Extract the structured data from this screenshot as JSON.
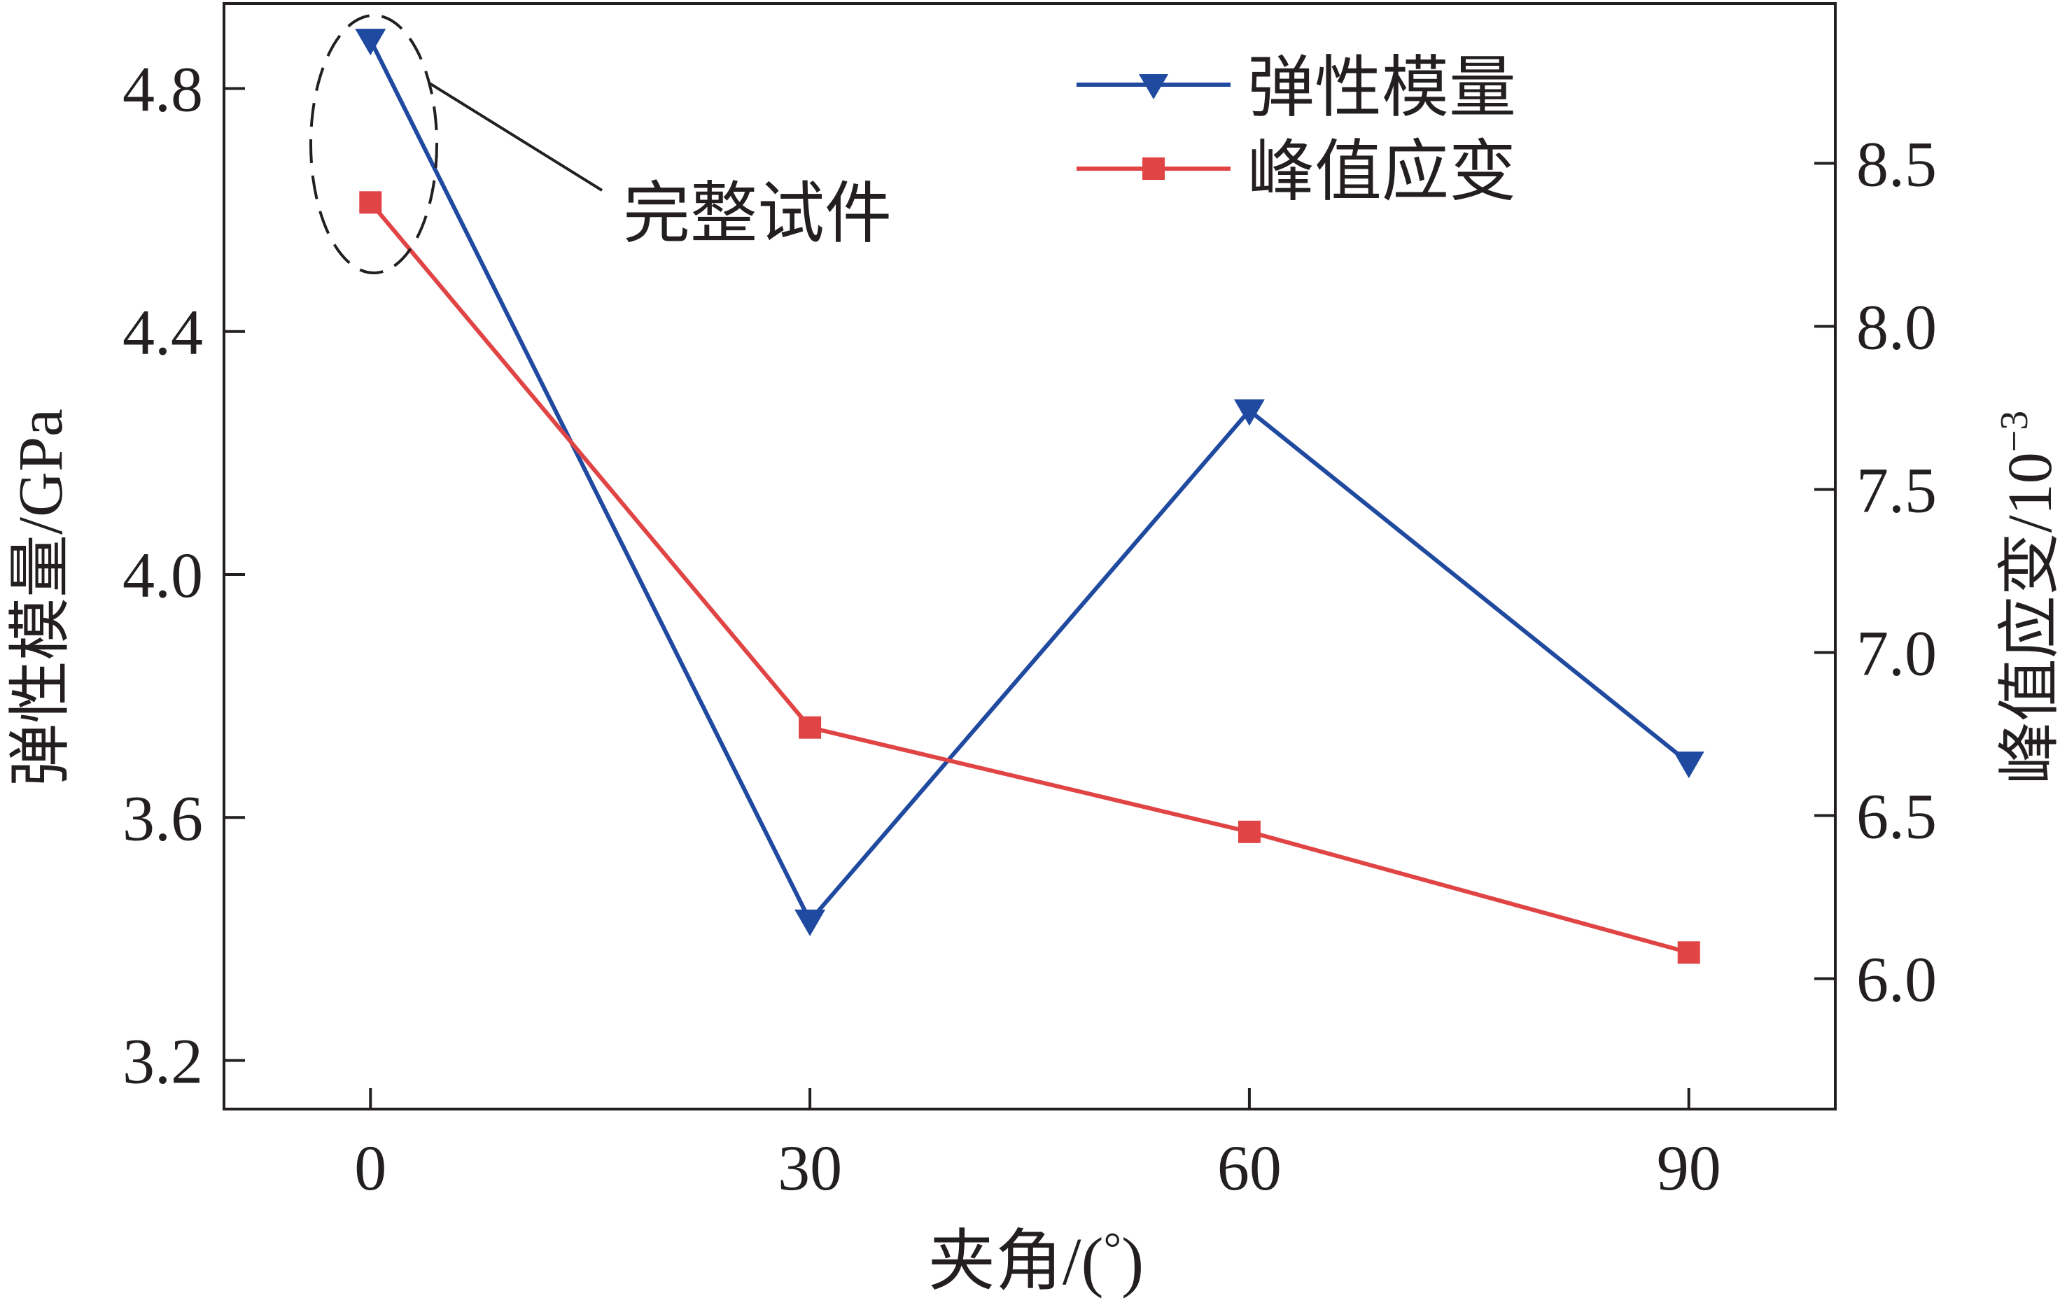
{
  "chart_data": {
    "type": "line",
    "x": [
      0,
      30,
      60,
      90
    ],
    "xlabel": "夹角/(°)",
    "xlabel_parts": {
      "main": "夹角/(",
      "degree": "°",
      "close": ")"
    },
    "x_ticks": [
      "0",
      "30",
      "60",
      "90"
    ],
    "xlim": [
      -10,
      100
    ],
    "y_left": {
      "label": "弹性模量/GPa",
      "ticks": [
        "3.2",
        "3.6",
        "4.0",
        "4.4",
        "4.8"
      ],
      "ylim": [
        3.12,
        4.94
      ]
    },
    "y_right": {
      "label_main": "峰值应变/10",
      "label_exponent": "−3",
      "ticks": [
        "6.0",
        "6.5",
        "7.0",
        "7.5",
        "8.0",
        "8.5"
      ],
      "ylim": [
        5.6,
        8.99
      ]
    },
    "series": [
      {
        "name": "弹性模量",
        "axis": "left",
        "marker": "triangle-down",
        "color": "#1f4aa0",
        "values": [
          4.88,
          3.43,
          4.27,
          3.69
        ]
      },
      {
        "name": "峰值应变",
        "axis": "right",
        "marker": "square",
        "color": "#e04444",
        "values": [
          8.38,
          6.77,
          6.45,
          6.08
        ]
      }
    ],
    "annotation": {
      "text": "完整试件"
    },
    "legend_position": "top-right",
    "grid": false
  }
}
